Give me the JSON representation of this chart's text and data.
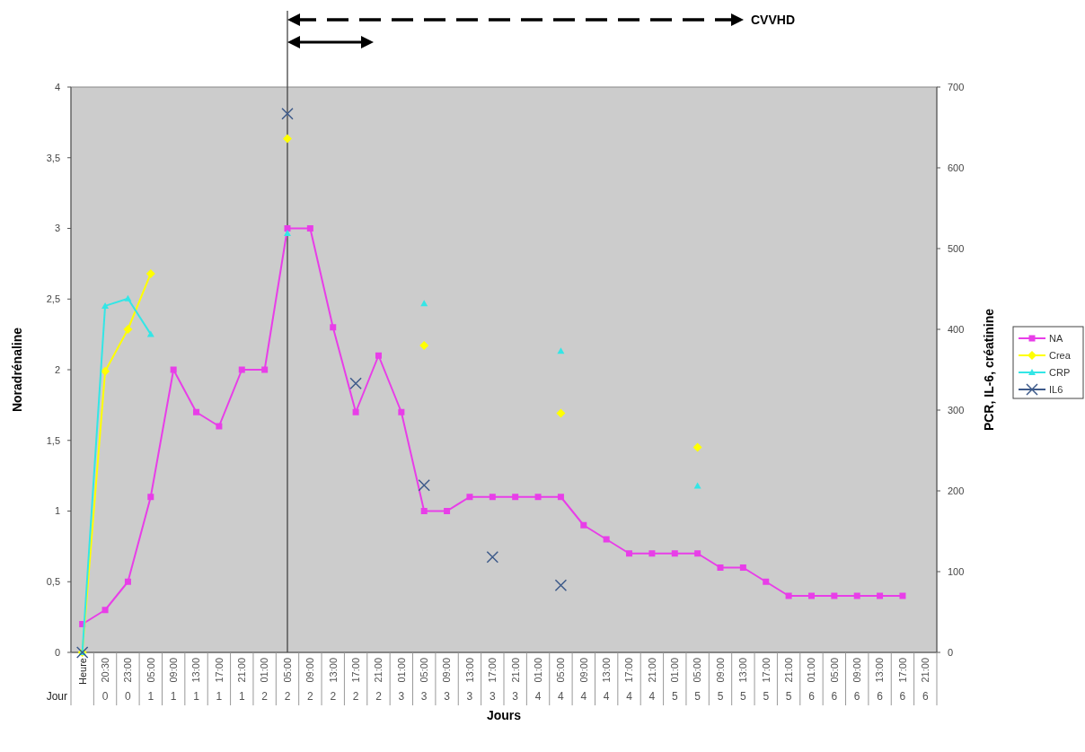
{
  "chart_data": {
    "type": "line",
    "xlabel": "Jours",
    "ylabel": "Noradrénaline",
    "y2label": "PCR, IL-6, créatinine",
    "categories": [
      "Heure",
      "20:30\n0",
      "23:00\n0",
      "05:00\n1",
      "09:00\n1",
      "13:00\n1",
      "17:00\n1",
      "21:00\n1",
      "01:00\n2",
      "05:00\n2",
      "09:00\n2",
      "13:00\n2",
      "17:00\n2",
      "21:00\n2",
      "01:00\n3",
      "05:00\n3",
      "09:00\n3",
      "13:00\n3",
      "17:00\n3",
      "21:00\n3",
      "01:00\n4",
      "05:00\n4",
      "09:00\n4",
      "13:00\n4",
      "17:00\n4",
      "21:00\n4",
      "01:00\n5",
      "05:00\n5",
      "09:00\n5",
      "13:00\n5",
      "17:00\n5",
      "21:00\n5",
      "01:00\n6",
      "05:00\n6",
      "09:00\n6",
      "13:00\n6",
      "17:00\n6",
      "21:00\n6"
    ],
    "ylim": [
      0,
      4
    ],
    "yticks": [
      0,
      {
        "value": 0.5,
        "label": "0,5"
      },
      1,
      {
        "value": 1.5,
        "label": "1,5"
      },
      2,
      {
        "value": 2.5,
        "label": "2,5"
      },
      3,
      {
        "value": 3.5,
        "label": "3,5"
      },
      4
    ],
    "y2lim": [
      0,
      700
    ],
    "y2ticks": [
      0,
      100,
      200,
      300,
      400,
      500,
      600,
      700
    ],
    "series": [
      {
        "name": "NA",
        "color": "#e83ee8",
        "marker": "square",
        "values": [
          0.2,
          0.3,
          0.5,
          1.1,
          2.0,
          1.7,
          1.6,
          2.0,
          2.0,
          3.0,
          3.0,
          2.3,
          1.7,
          2.1,
          1.7,
          1.0,
          1.0,
          1.1,
          1.1,
          1.1,
          1.1,
          1.1,
          0.9,
          0.8,
          0.7,
          0.7,
          0.7,
          0.7,
          0.6,
          0.6,
          0.5,
          0.4,
          0.4,
          0.4,
          0.4,
          0.4,
          0.4,
          null
        ]
      },
      {
        "name": "Crea",
        "color": "#ffff00",
        "marker": "diamond",
        "axis": "y2",
        "values": [
          0,
          348,
          400,
          469,
          null,
          null,
          null,
          null,
          null,
          636,
          null,
          null,
          null,
          null,
          null,
          380,
          null,
          null,
          null,
          null,
          null,
          296,
          null,
          null,
          null,
          null,
          null,
          254,
          null,
          null,
          null,
          null,
          null,
          null,
          null,
          null,
          null,
          null
        ]
      },
      {
        "name": "CRP",
        "color": "#33e6e6",
        "marker": "triangle",
        "axis": "y2",
        "values": [
          0,
          429,
          438,
          394,
          null,
          null,
          null,
          null,
          null,
          519,
          null,
          null,
          null,
          null,
          null,
          432,
          null,
          null,
          null,
          null,
          null,
          373,
          null,
          null,
          null,
          null,
          null,
          206,
          null,
          null,
          null,
          null,
          null,
          null,
          null,
          null,
          null,
          null
        ]
      },
      {
        "name": "IL6",
        "color": "#3d5a8a",
        "marker": "cross",
        "axis": "y2",
        "values": [
          0,
          null,
          null,
          null,
          null,
          null,
          null,
          null,
          null,
          667,
          null,
          null,
          333,
          null,
          null,
          207,
          null,
          null,
          118,
          null,
          null,
          83,
          null,
          null,
          null,
          null,
          null,
          null,
          null,
          null,
          null,
          null,
          null,
          null,
          null,
          null,
          null,
          null
        ]
      }
    ],
    "ref_lines": [
      {
        "axis": "x",
        "value": "05:00\n2",
        "color": "#444444"
      }
    ],
    "annotations": [
      "CVVHD",
      "Jour"
    ],
    "grid": false,
    "legend": "right",
    "line_style": "solid"
  }
}
